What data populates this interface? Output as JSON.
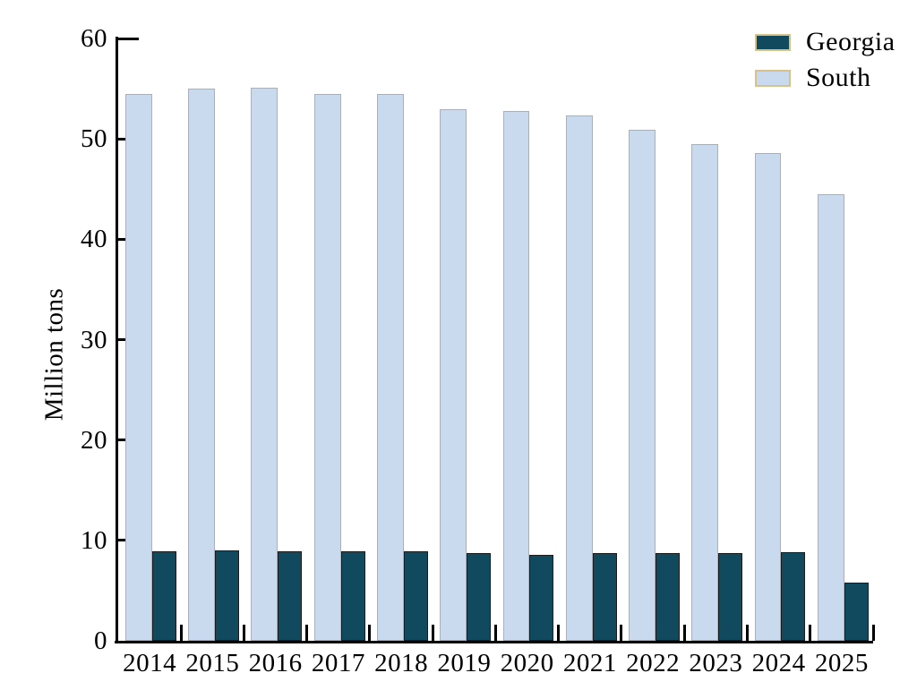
{
  "chart_data": {
    "type": "bar",
    "title": "",
    "xlabel": "",
    "ylabel": "Million tons",
    "categories": [
      "2014",
      "2015",
      "2016",
      "2017",
      "2018",
      "2019",
      "2020",
      "2021",
      "2022",
      "2023",
      "2024",
      "2025"
    ],
    "series": [
      {
        "name": "Georgia",
        "color": "#114a5e",
        "border_color": "#1c1c1c",
        "values": [
          8.9,
          9.0,
          8.9,
          8.9,
          8.9,
          8.7,
          8.6,
          8.7,
          8.7,
          8.7,
          8.8,
          5.8
        ]
      },
      {
        "name": "South",
        "color": "#c9d9ee",
        "border_color": "#a9b0bc",
        "values": [
          54.5,
          55.0,
          55.1,
          54.5,
          54.5,
          53.0,
          52.8,
          52.3,
          50.9,
          49.5,
          48.6,
          44.5
        ]
      }
    ],
    "ylim": [
      0,
      60
    ],
    "yticks": [
      0,
      10,
      20,
      30,
      40,
      50,
      60
    ],
    "grid": false,
    "legend_position": "upper right",
    "legend_swatch_border": "#d9c28a",
    "axis_color": "#000000",
    "background": "#ffffff"
  }
}
